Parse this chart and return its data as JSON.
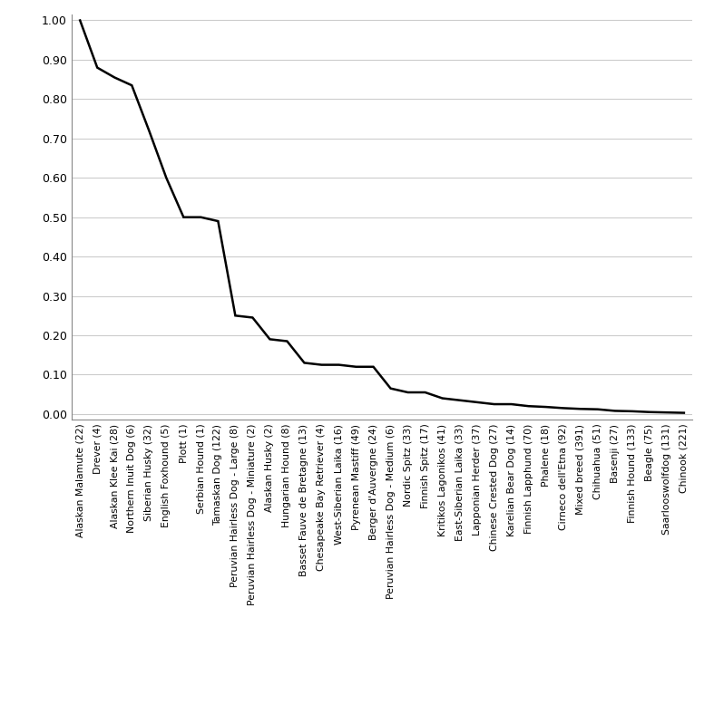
{
  "labels": [
    "Alaskan Malamute (22)",
    "Drever (4)",
    "Alaskan Klee Kai (28)",
    "Northern Inuit Dog (6)",
    "Siberian Husky (32)",
    "English Foxhound (5)",
    "Plott (1)",
    "Serbian Hound (1)",
    "Tamaskan Dog (122)",
    "Peruvian Hairless Dog - Large (8)",
    "Peruvian Hairless Dog - Miniature (2)",
    "Alaskan Husky (2)",
    "Hungarian Hound (8)",
    "Basset Fauve de Bretagne (13)",
    "Chesapeake Bay Retriever (4)",
    "West-Siberian Laika (16)",
    "Pyrenean Mastiff (49)",
    "Berger d'Auvergne (24)",
    "Peruvian Hairless Dog - Medium (6)",
    "Nordic Spitz (33)",
    "Finnish Spitz (17)",
    "Kritikos Lagonikos (41)",
    "East-Siberian Laika (33)",
    "Lapponian Herder (37)",
    "Chinese Crested Dog (27)",
    "Karelian Bear Dog (14)",
    "Finnish Lapphund (70)",
    "Phalene (18)",
    "Cirneco dell'Etna (92)",
    "Mixed breed (391)",
    "Chihuahua (51)",
    "Basenji (27)",
    "Finnish Hound (133)",
    "Beagle (75)",
    "Saarlooswolfdog (131)",
    "Chinook (221)"
  ],
  "values": [
    1.0,
    0.88,
    0.855,
    0.835,
    0.72,
    0.6,
    0.5,
    0.5,
    0.49,
    0.25,
    0.245,
    0.19,
    0.185,
    0.13,
    0.125,
    0.125,
    0.12,
    0.12,
    0.065,
    0.055,
    0.055,
    0.04,
    0.035,
    0.03,
    0.025,
    0.025,
    0.02,
    0.018,
    0.015,
    0.013,
    0.012,
    0.008,
    0.007,
    0.005,
    0.004,
    0.003
  ],
  "line_color": "#000000",
  "line_width": 1.8,
  "yticks": [
    0.0,
    0.1,
    0.2,
    0.3,
    0.4,
    0.5,
    0.6,
    0.7,
    0.8,
    0.9,
    1.0
  ],
  "ylim": [
    -0.015,
    1.015
  ],
  "grid_color": "#cccccc",
  "background_color": "#ffffff",
  "tick_fontsize": 9,
  "label_fontsize": 7.8
}
